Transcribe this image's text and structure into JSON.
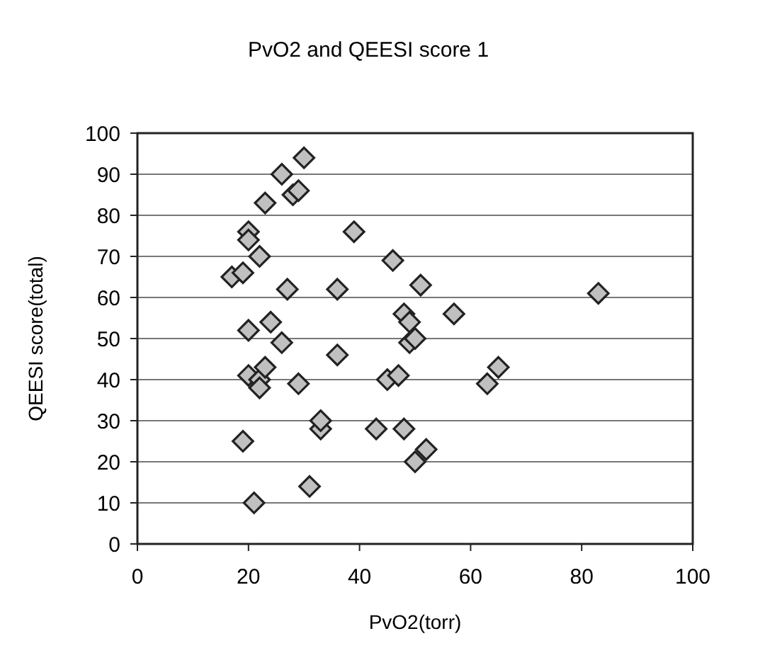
{
  "chart_data": {
    "type": "scatter",
    "title": "PvO2 and QEESI score 1",
    "xlabel": "PvO2(torr)",
    "ylabel": "QEESI score(total)",
    "x": [
      17,
      19,
      20,
      20,
      22,
      19,
      21,
      20,
      20,
      22,
      22,
      23,
      24,
      26,
      23,
      26,
      28,
      29,
      30,
      27,
      29,
      31,
      33,
      33,
      36,
      36,
      39,
      43,
      45,
      46,
      47,
      48,
      48,
      49,
      49,
      50,
      51,
      50,
      52,
      57,
      63,
      65,
      83
    ],
    "series": [
      {
        "color": "#c0c0c0",
        "values": [
          65,
          66,
          76,
          74,
          70,
          25,
          10,
          52,
          41,
          40,
          38,
          43,
          54,
          49,
          83,
          90,
          85,
          86,
          94,
          62,
          39,
          14,
          28,
          30,
          62,
          46,
          76,
          28,
          40,
          69,
          41,
          56,
          28,
          49,
          54,
          50,
          63,
          20,
          23,
          56,
          39,
          43,
          61
        ]
      }
    ],
    "xlim": [
      0,
      100
    ],
    "xticks": [
      0,
      20,
      40,
      60,
      80,
      100
    ],
    "ylim": [
      0,
      100
    ],
    "yticks": [
      0,
      10,
      20,
      30,
      40,
      50,
      60,
      70,
      80,
      90,
      100
    ],
    "grid": "y",
    "marker": "diamond"
  }
}
